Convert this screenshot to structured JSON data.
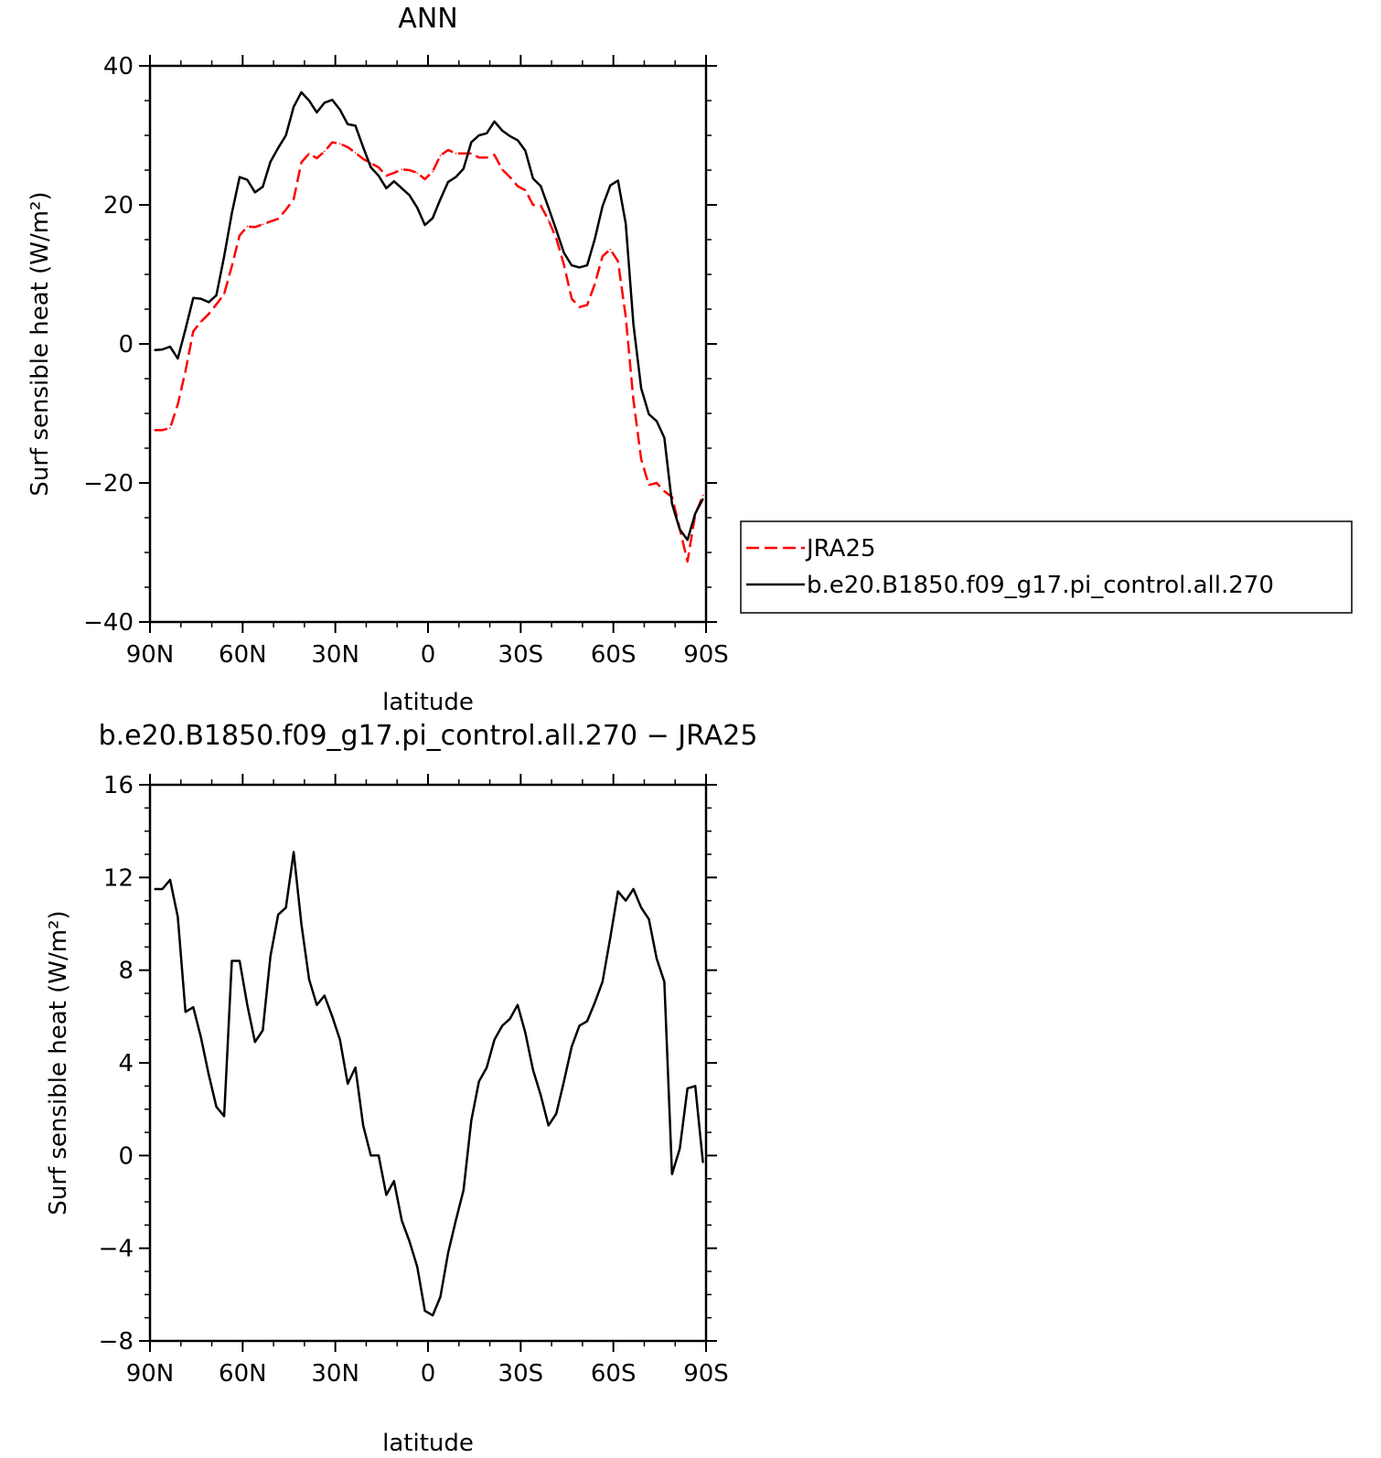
{
  "chart_data": [
    {
      "type": "line",
      "title": "ANN",
      "xlabel": "latitude",
      "ylabel": "Surf sensible heat (W/m²)",
      "ylim": [
        -40,
        40
      ],
      "xlim": [
        90,
        -90
      ],
      "x_direction": "90N to 90S",
      "x_ticks": [
        {
          "value": 90,
          "label": "90N"
        },
        {
          "value": 60,
          "label": "60N"
        },
        {
          "value": 30,
          "label": "30N"
        },
        {
          "value": 0,
          "label": "0"
        },
        {
          "value": -30,
          "label": "30S"
        },
        {
          "value": -60,
          "label": "60S"
        },
        {
          "value": -90,
          "label": "90S"
        }
      ],
      "y_ticks": [
        {
          "value": 40,
          "label": "40"
        },
        {
          "value": 20,
          "label": "20"
        },
        {
          "value": 0,
          "label": "0"
        },
        {
          "value": -20,
          "label": "−20"
        },
        {
          "value": -40,
          "label": "−40"
        }
      ],
      "legend_placement": "right",
      "series": [
        {
          "name": "JRA25",
          "color": "#ff0000",
          "dash": "dashed",
          "x": [
            88.5,
            86,
            83.5,
            81,
            78.5,
            76,
            73.5,
            71,
            68.5,
            66,
            63.5,
            61,
            58.5,
            56,
            53.5,
            51,
            48.5,
            46,
            43.5,
            41,
            38.5,
            36,
            33.5,
            31,
            28.5,
            26,
            23.5,
            21,
            18.5,
            16,
            13.5,
            11,
            8.5,
            6,
            3.5,
            1,
            -1.5,
            -4,
            -6.5,
            -9,
            -11.5,
            -14,
            -16.5,
            -19,
            -21.5,
            -24,
            -26.5,
            -29,
            -31.5,
            -34,
            -36.5,
            -39,
            -41.5,
            -44,
            -46.5,
            -49,
            -51.5,
            -54,
            -56.5,
            -59,
            -61.5,
            -64,
            -66.5,
            -69,
            -71.5,
            -74,
            -76.5,
            -79,
            -81.5,
            -84,
            -86.5,
            -89
          ],
          "y": [
            -12.4,
            -12.4,
            -12.1,
            -8.7,
            -3.9,
            1.8,
            3.2,
            4.3,
            5.7,
            7.2,
            11.2,
            15.6,
            16.9,
            16.8,
            17.2,
            17.6,
            18.0,
            19.3,
            20.8,
            26.1,
            27.4,
            26.7,
            27.7,
            29.0,
            28.8,
            28.3,
            27.5,
            26.6,
            26.0,
            25.4,
            24.2,
            24.6,
            25.1,
            25.0,
            24.6,
            23.7,
            24.8,
            27.1,
            27.9,
            27.4,
            27.4,
            27.4,
            26.8,
            26.8,
            27.2,
            25.1,
            24.0,
            22.7,
            22.1,
            20.0,
            19.9,
            17.8,
            15.2,
            11.4,
            6.5,
            5.3,
            5.6,
            8.6,
            12.6,
            13.6,
            11.9,
            3.9,
            -8.1,
            -16.6,
            -20.3,
            -20.0,
            -21.2,
            -22.0,
            -26.6,
            -31.3,
            -24.5,
            -21.8
          ]
        },
        {
          "name": "b.e20.B1850.f09_g17.pi_control.all.270",
          "color": "#000000",
          "dash": "solid",
          "x": [
            88.5,
            86,
            83.5,
            81,
            78.5,
            76,
            73.5,
            71,
            68.5,
            66,
            63.5,
            61,
            58.5,
            56,
            53.5,
            51,
            48.5,
            46,
            43.5,
            41,
            38.5,
            36,
            33.5,
            31,
            28.5,
            26,
            23.5,
            21,
            18.5,
            16,
            13.5,
            11,
            8.5,
            6,
            3.5,
            1,
            -1.5,
            -4,
            -6.5,
            -9,
            -11.5,
            -14,
            -16.5,
            -19,
            -21.5,
            -24,
            -26.5,
            -29,
            -31.5,
            -34,
            -36.5,
            -39,
            -41.5,
            -44,
            -46.5,
            -49,
            -51.5,
            -54,
            -56.5,
            -59,
            -61.5,
            -64,
            -66.5,
            -69,
            -71.5,
            -74,
            -76.5,
            -79,
            -81.5,
            -84,
            -86.5,
            -89
          ],
          "y": [
            -0.9,
            -0.8,
            -0.4,
            -2.1,
            2.1,
            6.6,
            6.5,
            6.0,
            7.0,
            12.6,
            18.8,
            24.0,
            23.6,
            21.8,
            22.6,
            26.2,
            28.2,
            30.0,
            34.1,
            36.2,
            35.0,
            33.3,
            34.7,
            35.1,
            33.7,
            31.6,
            31.4,
            28.3,
            25.4,
            24.2,
            22.4,
            23.4,
            22.4,
            21.4,
            19.6,
            17.1,
            18.1,
            20.8,
            23.3,
            24.0,
            25.2,
            29.0,
            30.0,
            30.3,
            32.0,
            30.7,
            29.9,
            29.3,
            27.8,
            23.8,
            22.7,
            19.6,
            16.4,
            13.1,
            11.3,
            11.0,
            11.3,
            15.1,
            19.8,
            22.8,
            23.5,
            17.3,
            2.8,
            -6.4,
            -10.1,
            -11.1,
            -13.5,
            -23.0,
            -26.7,
            -28.2,
            -24.4,
            -22.3
          ]
        }
      ]
    },
    {
      "type": "line",
      "title": "b.e20.B1850.f09_g17.pi_control.all.270 − JRA25",
      "xlabel": "latitude",
      "ylabel": "Surf sensible heat (W/m²)",
      "ylim": [
        -8,
        16
      ],
      "xlim": [
        90,
        -90
      ],
      "x_direction": "90N to 90S",
      "x_ticks": [
        {
          "value": 90,
          "label": "90N"
        },
        {
          "value": 60,
          "label": "60N"
        },
        {
          "value": 30,
          "label": "30N"
        },
        {
          "value": 0,
          "label": "0"
        },
        {
          "value": -30,
          "label": "30S"
        },
        {
          "value": -60,
          "label": "60S"
        },
        {
          "value": -90,
          "label": "90S"
        }
      ],
      "y_ticks": [
        {
          "value": 16,
          "label": "16"
        },
        {
          "value": 12,
          "label": "12"
        },
        {
          "value": 8,
          "label": "8"
        },
        {
          "value": 4,
          "label": "4"
        },
        {
          "value": 0,
          "label": "0"
        },
        {
          "value": -4,
          "label": "−4"
        },
        {
          "value": -8,
          "label": "−8"
        }
      ],
      "series": [
        {
          "color": "#000000",
          "dash": "solid",
          "x": [
            88.5,
            86,
            83.5,
            81,
            78.5,
            76,
            73.5,
            71,
            68.5,
            66,
            63.5,
            61,
            58.5,
            56,
            53.5,
            51,
            48.5,
            46,
            43.5,
            41,
            38.5,
            36,
            33.5,
            31,
            28.5,
            26,
            23.5,
            21,
            18.5,
            16,
            13.5,
            11,
            8.5,
            6,
            3.5,
            1,
            -1.5,
            -4,
            -6.5,
            -9,
            -11.5,
            -14,
            -16.5,
            -19,
            -21.5,
            -24,
            -26.5,
            -29,
            -31.5,
            -34,
            -36.5,
            -39,
            -41.5,
            -44,
            -46.5,
            -49,
            -51.5,
            -54,
            -56.5,
            -59,
            -61.5,
            -64,
            -66.5,
            -69,
            -71.5,
            -74,
            -76.5,
            -79,
            -81.5,
            -84,
            -86.5,
            -89
          ],
          "y": [
            11.5,
            11.5,
            11.9,
            10.3,
            6.2,
            6.4,
            5.1,
            3.5,
            2.1,
            1.7,
            8.4,
            8.4,
            6.5,
            4.9,
            5.4,
            8.6,
            10.4,
            10.7,
            13.1,
            10.0,
            7.6,
            6.5,
            6.9,
            6.0,
            5.0,
            3.1,
            3.8,
            1.3,
            0.0,
            0.0,
            -1.7,
            -1.1,
            -2.8,
            -3.7,
            -4.8,
            -6.7,
            -6.9,
            -6.1,
            -4.2,
            -2.8,
            -1.5,
            1.5,
            3.2,
            3.8,
            5.0,
            5.6,
            5.9,
            6.5,
            5.3,
            3.7,
            2.6,
            1.3,
            1.8,
            3.2,
            4.7,
            5.6,
            5.8,
            6.6,
            7.5,
            9.4,
            11.4,
            11.0,
            11.5,
            10.7,
            10.2,
            8.5,
            7.5,
            -0.8,
            0.3,
            2.9,
            3.0,
            -0.3
          ]
        }
      ]
    }
  ]
}
